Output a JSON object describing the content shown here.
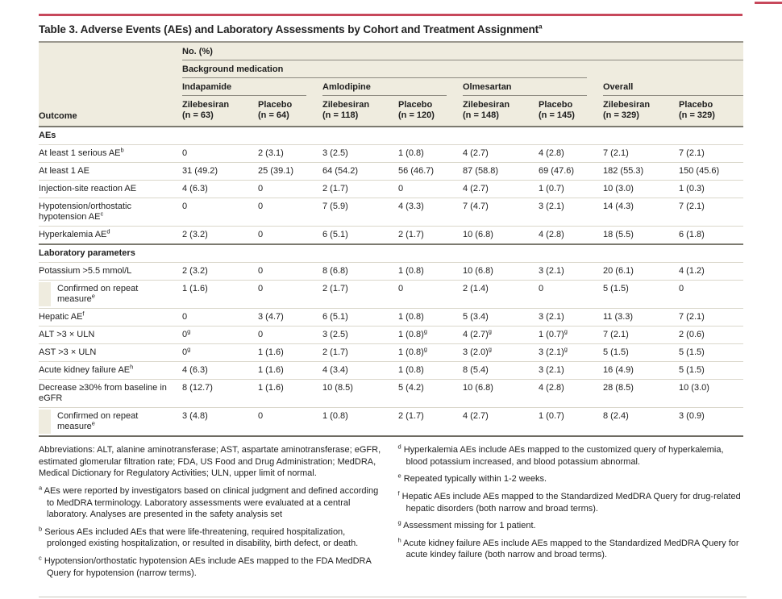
{
  "title": "Table 3. Adverse Events (AEs) and Laboratory Assessments by Cohort and Treatment Assignment",
  "title_sup": "a",
  "header": {
    "no_pct": "No. (%)",
    "background_medication": "Background medication",
    "groups": [
      "Indapamide",
      "Amlodipine",
      "Olmesartan",
      "Overall"
    ],
    "outcome_label": "Outcome",
    "columns": [
      {
        "drug": "Zilebesiran",
        "n": "(n = 63)"
      },
      {
        "drug": "Placebo",
        "n": "(n = 64)"
      },
      {
        "drug": "Zilebesiran",
        "n": "(n = 118)"
      },
      {
        "drug": "Placebo",
        "n": "(n = 120)"
      },
      {
        "drug": "Zilebesiran",
        "n": "(n = 148)"
      },
      {
        "drug": "Placebo",
        "n": "(n = 145)"
      },
      {
        "drug": "Zilebesiran",
        "n": "(n = 329)"
      },
      {
        "drug": "Placebo",
        "n": "(n = 329)"
      }
    ]
  },
  "table": {
    "rows": [
      {
        "type": "section",
        "label": "AEs"
      },
      {
        "type": "data",
        "label": "At least 1 serious AE",
        "sup": "b",
        "indent": false,
        "values": [
          "0",
          "2 (3.1)",
          "3 (2.5)",
          "1 (0.8)",
          "4 (2.7)",
          "4 (2.8)",
          "7 (2.1)",
          "7 (2.1)"
        ]
      },
      {
        "type": "data",
        "label": "At least 1 AE",
        "sup": "",
        "indent": false,
        "values": [
          "31 (49.2)",
          "25 (39.1)",
          "64 (54.2)",
          "56 (46.7)",
          "87 (58.8)",
          "69 (47.6)",
          "182 (55.3)",
          "150 (45.6)"
        ]
      },
      {
        "type": "data",
        "label": "Injection-site reaction AE",
        "sup": "",
        "indent": false,
        "values": [
          "4 (6.3)",
          "0",
          "2 (1.7)",
          "0",
          "4 (2.7)",
          "1 (0.7)",
          "10 (3.0)",
          "1 (0.3)"
        ]
      },
      {
        "type": "data",
        "label": "Hypotension/orthostatic hypotension AE",
        "sup": "c",
        "indent": false,
        "values": [
          "0",
          "0",
          "7 (5.9)",
          "4 (3.3)",
          "7 (4.7)",
          "3 (2.1)",
          "14 (4.3)",
          "7 (2.1)"
        ]
      },
      {
        "type": "data",
        "label": "Hyperkalemia AE",
        "sup": "d",
        "indent": false,
        "values": [
          "2 (3.2)",
          "0",
          "6 (5.1)",
          "2 (1.7)",
          "10 (6.8)",
          "4 (2.8)",
          "18 (5.5)",
          "6 (1.8)"
        ]
      },
      {
        "type": "section",
        "label": "Laboratory parameters"
      },
      {
        "type": "data",
        "label": "Potassium >5.5 mmol/L",
        "sup": "",
        "indent": false,
        "values": [
          "2 (3.2)",
          "0",
          "8 (6.8)",
          "1 (0.8)",
          "10 (6.8)",
          "3 (2.1)",
          "20 (6.1)",
          "4 (1.2)"
        ]
      },
      {
        "type": "data",
        "label": "Confirmed on repeat measure",
        "sup": "e",
        "indent": true,
        "values": [
          "1 (1.6)",
          "0",
          "2 (1.7)",
          "0",
          "2 (1.4)",
          "0",
          "5 (1.5)",
          "0"
        ]
      },
      {
        "type": "data",
        "label": "Hepatic AE",
        "sup": "f",
        "indent": false,
        "values": [
          "0",
          "3 (4.7)",
          "6 (5.1)",
          "1 (0.8)",
          "5 (3.4)",
          "3 (2.1)",
          "11 (3.3)",
          "7 (2.1)"
        ]
      },
      {
        "type": "data",
        "label": "ALT >3 × ULN",
        "sup": "",
        "indent": false,
        "values": [
          "0^g",
          "0",
          "3 (2.5)",
          "1 (0.8)^g",
          "4 (2.7)^g",
          "1 (0.7)^g",
          "7 (2.1)",
          "2 (0.6)"
        ]
      },
      {
        "type": "data",
        "label": "AST >3 × ULN",
        "sup": "",
        "indent": false,
        "values": [
          "0^g",
          "1 (1.6)",
          "2 (1.7)",
          "1 (0.8)^g",
          "3 (2.0)^g",
          "3 (2.1)^g",
          "5 (1.5)",
          "5 (1.5)"
        ]
      },
      {
        "type": "data",
        "label": "Acute kidney failure AE",
        "sup": "h",
        "indent": false,
        "values": [
          "4 (6.3)",
          "1 (1.6)",
          "4 (3.4)",
          "1 (0.8)",
          "8 (5.4)",
          "3 (2.1)",
          "16 (4.9)",
          "5 (1.5)"
        ]
      },
      {
        "type": "data",
        "label": "Decrease ≥30% from baseline in eGFR",
        "sup": "",
        "indent": false,
        "values": [
          "8 (12.7)",
          "1 (1.6)",
          "10 (8.5)",
          "5 (4.2)",
          "10 (6.8)",
          "4 (2.8)",
          "28 (8.5)",
          "10 (3.0)"
        ]
      },
      {
        "type": "data",
        "label": "Confirmed on repeat measure",
        "sup": "e",
        "indent": true,
        "values": [
          "3 (4.8)",
          "0",
          "1 (0.8)",
          "2 (1.7)",
          "4 (2.7)",
          "1 (0.7)",
          "8 (2.4)",
          "3 (0.9)"
        ]
      }
    ]
  },
  "footnotes": {
    "left": [
      {
        "sup": "",
        "text": "Abbreviations: ALT, alanine aminotransferase; AST, aspartate aminotransferase; eGFR, estimated glomerular filtration rate; FDA, US Food and Drug Administration; MedDRA, Medical Dictionary for Regulatory Activities; ULN, upper limit of normal."
      },
      {
        "sup": "a",
        "text": "AEs were reported by investigators based on clinical judgment and defined according to MedDRA terminology. Laboratory assessments were evaluated at a central laboratory. Analyses are presented in the safety analysis set"
      },
      {
        "sup": "b",
        "text": "Serious AEs included AEs that were life-threatening, required hospitalization, prolonged existing hospitalization, or resulted in disability, birth defect, or death."
      },
      {
        "sup": "c",
        "text": "Hypotension/orthostatic hypotension AEs include AEs mapped to the FDA MedDRA Query for hypotension (narrow terms)."
      }
    ],
    "right": [
      {
        "sup": "d",
        "text": "Hyperkalemia AEs include AEs mapped to the customized query of hyperkalemia, blood potassium increased, and blood potassium abnormal."
      },
      {
        "sup": "e",
        "text": "Repeated typically within 1-2 weeks."
      },
      {
        "sup": "f",
        "text": "Hepatic AEs include AEs mapped to the Standardized MedDRA Query for drug-related hepatic disorders (both narrow and broad terms)."
      },
      {
        "sup": "g",
        "text": "Assessment missing for 1 patient."
      },
      {
        "sup": "h",
        "text": "Acute kidney failure AEs include AEs mapped to the Standardized MedDRA Query for acute kindey failure (both narrow and broad terms)."
      }
    ]
  }
}
